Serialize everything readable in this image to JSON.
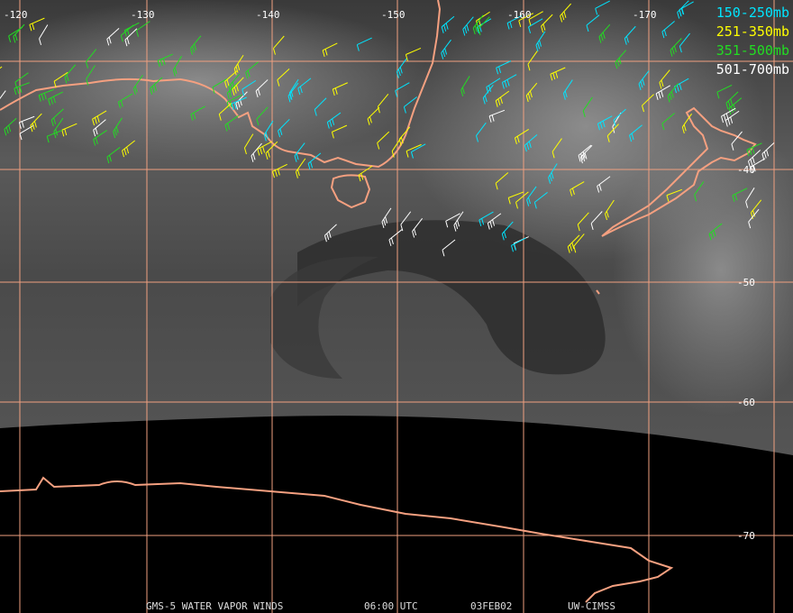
{
  "map": {
    "longitude_labels": [
      "-120",
      "-130",
      "-140",
      "-150",
      "-160",
      "-170"
    ],
    "latitude_labels": [
      "-40",
      "-50",
      "-60",
      "-70"
    ],
    "legend": [
      {
        "label": "150-250mb",
        "color": "#00e5ff"
      },
      {
        "label": "251-350mb",
        "color": "#ffff00"
      },
      {
        "label": "351-500mb",
        "color": "#22dd22"
      },
      {
        "label": "501-700mb",
        "color": "#ffffff"
      }
    ],
    "footer": [
      "GMS-5 WATER VAPOR WINDS",
      "06:00 UTC",
      "03FEB02",
      "UW-CIMSS"
    ]
  }
}
